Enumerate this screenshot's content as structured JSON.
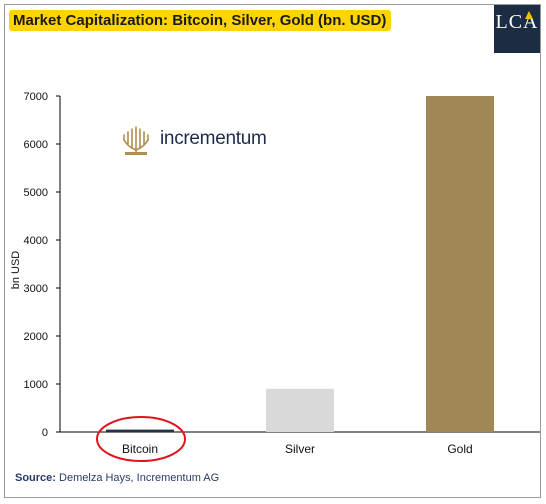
{
  "brand": {
    "lca_label": "LCA",
    "logo_text": "incrementum"
  },
  "colors": {
    "title_highlight": "#ffd400",
    "bitcoin_bar": "#233447",
    "silver_bar": "#d9d9d9",
    "gold_bar": "#a08856",
    "annotation_circle": "#e0141e",
    "logo_gold": "#b08e4e"
  },
  "source": {
    "label": "Source:",
    "text": "Demelza Hays, Incrementum AG"
  },
  "chart_data": {
    "type": "bar",
    "title": "Market Capitalization: Bitcoin, Silver, Gold (bn. USD)",
    "xlabel": "",
    "ylabel": "bn USD",
    "categories": [
      "Bitcoin",
      "Silver",
      "Gold"
    ],
    "values": [
      50,
      900,
      7000
    ],
    "ylim": [
      0,
      7000
    ],
    "yticks": [
      0,
      1000,
      2000,
      3000,
      4000,
      5000,
      6000,
      7000
    ],
    "grid": false,
    "legend": "none",
    "annotations": [
      "circle around Bitcoin label"
    ]
  }
}
